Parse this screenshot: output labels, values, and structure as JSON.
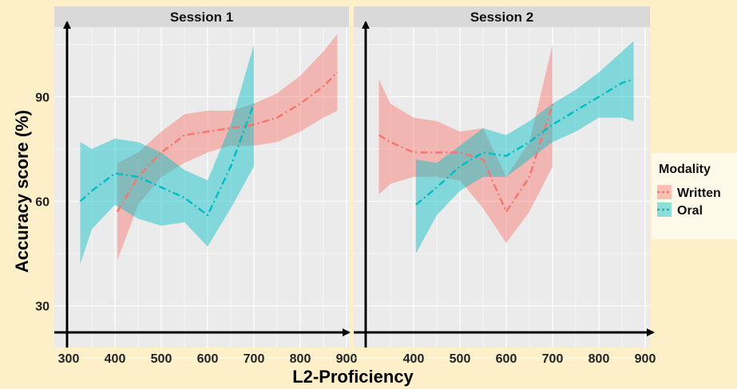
{
  "chart_data": {
    "type": "line",
    "xlabel": "L2-Proficiency",
    "ylabel": "Accuracy score (%)",
    "xlim": [
      300,
      900
    ],
    "ylim": [
      18,
      110
    ],
    "x_ticks": [
      300,
      400,
      500,
      600,
      700,
      800,
      900
    ],
    "y_ticks": [
      30,
      60,
      90
    ],
    "grid": true,
    "legend": {
      "title": "Modality",
      "position": "right",
      "entries": [
        {
          "name": "Written",
          "color": "#f8766d"
        },
        {
          "name": "Oral",
          "color": "#00bfc4"
        }
      ]
    },
    "facets": [
      {
        "title": "Session 1",
        "series": [
          {
            "name": "Written",
            "color": "#f8766d",
            "x": [
              405,
              450,
              500,
              550,
              600,
              650,
              700,
              750,
              800,
              850,
              880
            ],
            "y": [
              57,
              67,
              74,
              79,
              80,
              81,
              82,
              84,
              88,
              93,
              97
            ],
            "lower": [
              43,
              59,
              67,
              71,
              74,
              76,
              76,
              77,
              80,
              84,
              86
            ],
            "upper": [
              71,
              74,
              80,
              85,
              86,
              86,
              88,
              91,
              96,
              103,
              108
            ]
          },
          {
            "name": "Oral",
            "color": "#00bfc4",
            "x": [
              325,
              350,
              400,
              450,
              500,
              550,
              600,
              650,
              700
            ],
            "y": [
              60,
              63,
              68,
              67,
              64,
              61,
              56,
              70,
              88
            ],
            "lower": [
              42,
              52,
              59,
              55,
              53,
              54,
              47,
              58,
              70
            ],
            "upper": [
              77,
              75,
              78,
              77,
              74,
              69,
              66,
              82,
              105
            ]
          }
        ]
      },
      {
        "title": "Session 2",
        "series": [
          {
            "name": "Written",
            "color": "#f8766d",
            "x": [
              325,
              350,
              400,
              450,
              500,
              550,
              600,
              650,
              700
            ],
            "y": [
              79,
              77,
              74,
              74,
              74,
              72,
              57,
              67,
              88
            ],
            "lower": [
              62,
              65,
              67,
              67,
              66,
              58,
              48,
              57,
              70
            ],
            "upper": [
              95,
              88,
              84,
              83,
              80,
              81,
              67,
              77,
              105
            ]
          },
          {
            "name": "Oral",
            "color": "#00bfc4",
            "x": [
              405,
              450,
              500,
              550,
              600,
              650,
              700,
              750,
              800,
              850,
              875
            ],
            "y": [
              59,
              64,
              70,
              74,
              73,
              77,
              82,
              86,
              90,
              94,
              95
            ],
            "lower": [
              45,
              56,
              63,
              67,
              67,
              72,
              77,
              80,
              84,
              84,
              83
            ],
            "upper": [
              72,
              71,
              76,
              81,
              79,
              83,
              88,
              92,
              97,
              103,
              106
            ]
          }
        ]
      }
    ]
  }
}
